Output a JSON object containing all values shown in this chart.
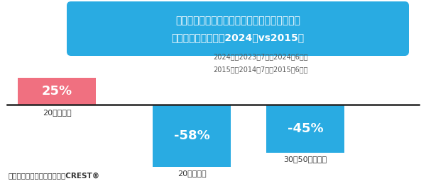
{
  "title_line1": "外食（イートイン）：年代別ビール、サワーを",
  "title_line2": "飲食した食機会数　2024年vs2015年",
  "title_bg_color": "#29ABE2",
  "title_text_color": "#FFFFFF",
  "note_line1": "2024年：2023年7月〜2024年6月計",
  "note_line2": "2015年：2014年7月〜2015年6月計",
  "note_color": "#555555",
  "categories": [
    "20代サワー",
    "20代ビール",
    "30〜50代ビール"
  ],
  "values": [
    25,
    -58,
    -45
  ],
  "bar_colors": [
    "#F07080",
    "#29ABE2",
    "#29ABE2"
  ],
  "bar_labels": [
    "25%",
    "-58%",
    "-45%"
  ],
  "label_color": "#FFFFFF",
  "baseline_color": "#222222",
  "source_text": "出典：サカーナ・ジャパン　CREST®",
  "source_color": "#333333",
  "bg_color": "#FFFFFF",
  "ylim": [
    -75,
    90
  ],
  "bar_width": 0.52
}
